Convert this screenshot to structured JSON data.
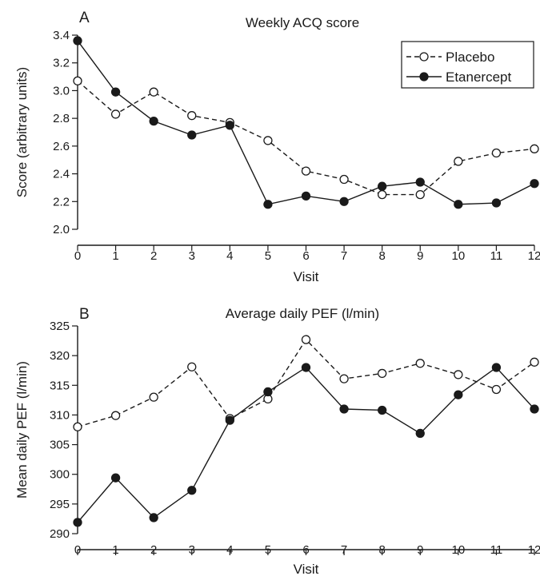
{
  "chart_data": [
    {
      "type": "line",
      "panel": "A",
      "title": "Weekly ACQ score",
      "xlabel": "Visit",
      "ylabel": "Score (arbitrary units)",
      "xlim": [
        0,
        12
      ],
      "ylim": [
        2.0,
        3.4
      ],
      "x_ticks": [
        0,
        1,
        2,
        3,
        4,
        5,
        6,
        7,
        8,
        9,
        10,
        11,
        12
      ],
      "y_ticks": [
        "2.0",
        "2.2",
        "2.4",
        "2.6",
        "2.8",
        "3.0",
        "3.2",
        "3.4"
      ],
      "grid": false,
      "legend": "top-right",
      "x": [
        0,
        1,
        2,
        3,
        4,
        5,
        6,
        7,
        8,
        9,
        10,
        11,
        12
      ],
      "series": [
        {
          "name": "Placebo",
          "style": "dashed",
          "marker": "open-circle",
          "color": "#1a1a1a",
          "values": [
            3.07,
            2.83,
            2.99,
            2.82,
            2.77,
            2.64,
            2.42,
            2.36,
            2.25,
            2.25,
            2.49,
            2.55,
            2.58
          ]
        },
        {
          "name": "Etanercept",
          "style": "solid",
          "marker": "filled-circle",
          "color": "#1a1a1a",
          "values": [
            3.36,
            2.99,
            2.78,
            2.68,
            2.75,
            2.18,
            2.24,
            2.2,
            2.31,
            2.34,
            2.18,
            2.19,
            2.33
          ]
        }
      ]
    },
    {
      "type": "line",
      "panel": "B",
      "title": "Average daily PEF (l/min)",
      "xlabel": "Visit",
      "ylabel": "Mean daily PEF (l/min)",
      "xlim": [
        0,
        12
      ],
      "ylim": [
        290,
        325
      ],
      "x_ticks": [
        0,
        1,
        2,
        3,
        4,
        5,
        6,
        7,
        8,
        9,
        10,
        11,
        12
      ],
      "y_ticks": [
        "290",
        "295",
        "300",
        "305",
        "310",
        "315",
        "320",
        "325"
      ],
      "grid": false,
      "legend": "none",
      "x": [
        0,
        1,
        2,
        3,
        4,
        5,
        6,
        7,
        8,
        9,
        10,
        11,
        12
      ],
      "series": [
        {
          "name": "Placebo",
          "style": "dashed",
          "marker": "open-circle",
          "color": "#1a1a1a",
          "values": [
            308.0,
            309.9,
            313.0,
            318.1,
            309.4,
            312.7,
            322.7,
            316.1,
            317.0,
            318.7,
            316.8,
            314.3,
            318.9
          ]
        },
        {
          "name": "Etanercept",
          "style": "solid",
          "marker": "filled-circle",
          "color": "#1a1a1a",
          "values": [
            291.9,
            299.4,
            292.7,
            297.3,
            309.1,
            313.9,
            318.0,
            311.0,
            310.8,
            306.9,
            313.4,
            318.0,
            311.0
          ]
        }
      ]
    }
  ]
}
